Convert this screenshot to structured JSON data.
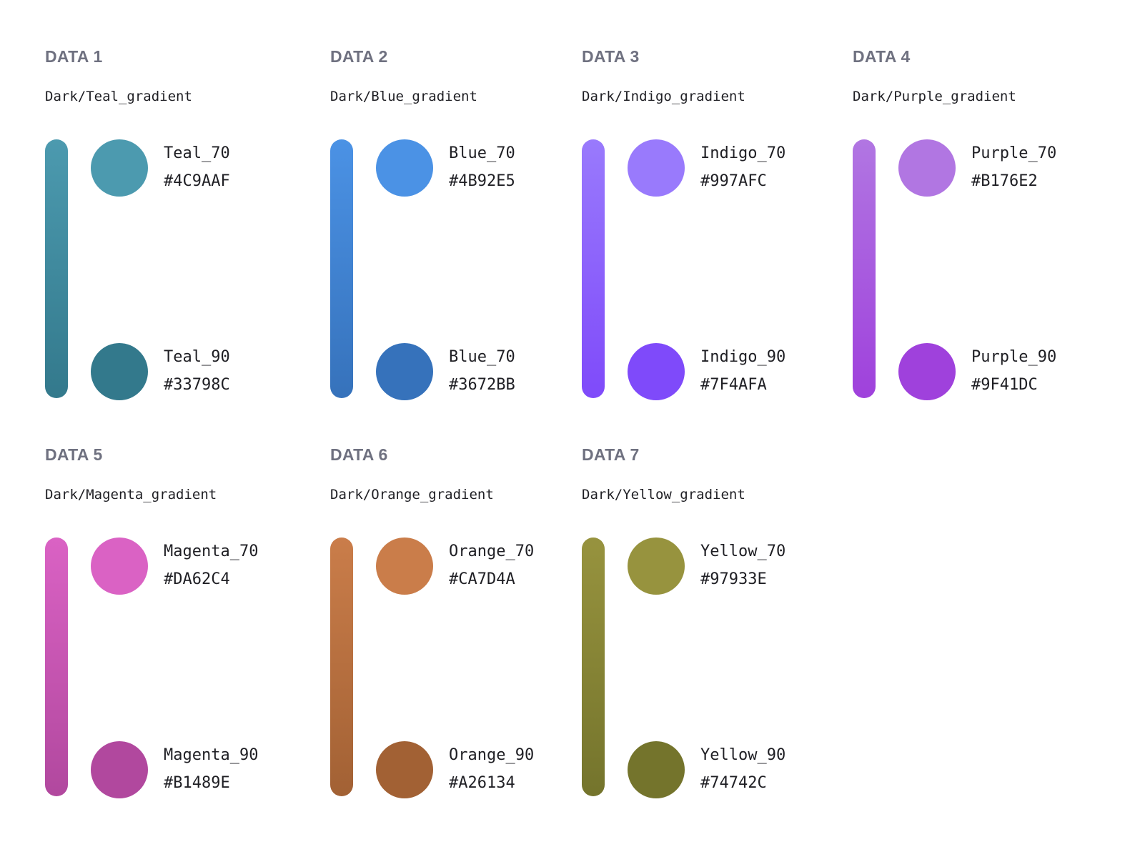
{
  "groups": [
    {
      "title": "DATA 1",
      "subtitle": "Dark/Teal_gradient",
      "top": {
        "name": "Teal_70",
        "hex": "#4C9AAF",
        "color": "#4C9AAF"
      },
      "bottom": {
        "name": "Teal_90",
        "hex": "#33798C",
        "color": "#33798C"
      }
    },
    {
      "title": "DATA 2",
      "subtitle": "Dark/Blue_gradient",
      "top": {
        "name": "Blue_70",
        "hex": "#4B92E5",
        "color": "#4B92E5"
      },
      "bottom": {
        "name": "Blue_70",
        "hex": "#3672BB",
        "color": "#3672BB"
      }
    },
    {
      "title": "DATA 3",
      "subtitle": "Dark/Indigo_gradient",
      "top": {
        "name": "Indigo_70",
        "hex": "#997AFC",
        "color": "#997AFC"
      },
      "bottom": {
        "name": "Indigo_90",
        "hex": "#7F4AFA",
        "color": "#7F4AFA"
      }
    },
    {
      "title": "DATA 4",
      "subtitle": "Dark/Purple_gradient",
      "top": {
        "name": "Purple_70",
        "hex": "#B176E2",
        "color": "#B176E2"
      },
      "bottom": {
        "name": "Purple_90",
        "hex": "#9F41DC",
        "color": "#9F41DC"
      }
    },
    {
      "title": "DATA 5",
      "subtitle": "Dark/Magenta_gradient",
      "top": {
        "name": "Magenta_70",
        "hex": "#DA62C4",
        "color": "#DA62C4"
      },
      "bottom": {
        "name": "Magenta_90",
        "hex": "#B1489E",
        "color": "#B1489E"
      }
    },
    {
      "title": "DATA 6",
      "subtitle": "Dark/Orange_gradient",
      "top": {
        "name": "Orange_70",
        "hex": "#CA7D4A",
        "color": "#CA7D4A"
      },
      "bottom": {
        "name": "Orange_90",
        "hex": "#A26134",
        "color": "#A26134"
      }
    },
    {
      "title": "DATA 7",
      "subtitle": "Dark/Yellow_gradient",
      "top": {
        "name": "Yellow_70",
        "hex": "#97933E",
        "color": "#97933E"
      },
      "bottom": {
        "name": "Yellow_90",
        "hex": "#74742C",
        "color": "#74742C"
      }
    }
  ]
}
